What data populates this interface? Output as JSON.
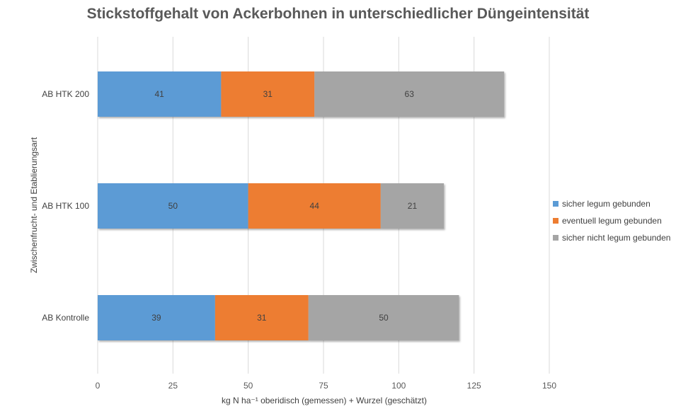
{
  "chart_data": {
    "type": "bar",
    "orientation": "horizontal",
    "stacked": true,
    "title": "Stickstoffgehalt von Ackerbohnen in unterschiedlicher Düngeintensität",
    "xlabel": "kg N ha⁻¹ oberidisch (gemessen) + Wurzel (geschätzt)",
    "ylabel": "Zwischenfrucht- und Etablierungsart",
    "xlim": [
      0,
      150
    ],
    "xticks": [
      "0",
      "25",
      "50",
      "75",
      "100",
      "125",
      "150"
    ],
    "categories": [
      "AB HTK 200",
      "AB HTK 100",
      "AB Kontrolle"
    ],
    "series": [
      {
        "name": "sicher legum gebunden",
        "color": "#5B9BD5",
        "values": [
          41,
          50,
          39
        ]
      },
      {
        "name": "eventuell legum gebunden",
        "color": "#ED7D31",
        "values": [
          31,
          44,
          31
        ]
      },
      {
        "name": "sicher nicht legum gebunden",
        "color": "#A5A5A5",
        "values": [
          63,
          21,
          50
        ]
      }
    ],
    "grid": true,
    "legend_position": "right"
  }
}
